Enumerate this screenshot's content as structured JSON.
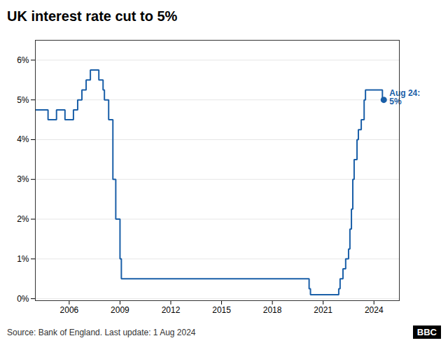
{
  "chart_data": {
    "type": "line",
    "title": "UK interest rate cut to 5%",
    "source": "Source: Bank of England. Last update: 1 Aug 2024",
    "logo": "BBC",
    "color": "#1a5fa8",
    "grid": true,
    "xlim": [
      2004.0,
      2025.5
    ],
    "xticks": [
      2006,
      2009,
      2012,
      2015,
      2018,
      2021,
      2024
    ],
    "ylim": [
      -0.05,
      6.5
    ],
    "yticks": [
      {
        "value": 0,
        "label": "0%"
      },
      {
        "value": 1,
        "label": "1%"
      },
      {
        "value": 2,
        "label": "2%"
      },
      {
        "value": 3,
        "label": "3%"
      },
      {
        "value": 4,
        "label": "4%"
      },
      {
        "value": 5,
        "label": "5%"
      },
      {
        "value": 6,
        "label": "6%"
      }
    ],
    "x": [
      2004.0,
      2004.75,
      2004.75,
      2005.25,
      2005.25,
      2005.75,
      2005.75,
      2006.0,
      2006.0,
      2006.25,
      2006.25,
      2006.5,
      2006.5,
      2006.75,
      2006.75,
      2007.0,
      2007.0,
      2007.25,
      2007.25,
      2007.5,
      2007.5,
      2007.75,
      2007.75,
      2008.0,
      2008.0,
      2008.08,
      2008.08,
      2008.33,
      2008.33,
      2008.58,
      2008.58,
      2008.75,
      2008.75,
      2009.0,
      2009.0,
      2009.08,
      2009.08,
      2020.17,
      2020.17,
      2020.25,
      2020.25,
      2021.92,
      2021.92,
      2022.0,
      2022.0,
      2022.17,
      2022.17,
      2022.33,
      2022.33,
      2022.5,
      2022.5,
      2022.58,
      2022.58,
      2022.67,
      2022.67,
      2022.75,
      2022.75,
      2022.83,
      2022.83,
      2023.0,
      2023.0,
      2023.08,
      2023.08,
      2023.25,
      2023.25,
      2023.42,
      2023.42,
      2023.5,
      2023.5,
      2024.5,
      2024.5,
      2024.58
    ],
    "values": [
      4.75,
      4.75,
      4.5,
      4.5,
      4.75,
      4.75,
      4.5,
      4.5,
      4.5,
      4.5,
      4.75,
      4.75,
      5.0,
      5.0,
      5.25,
      5.25,
      5.5,
      5.5,
      5.75,
      5.75,
      5.75,
      5.75,
      5.5,
      5.5,
      5.25,
      5.25,
      5.0,
      5.0,
      4.5,
      4.5,
      3.0,
      3.0,
      2.0,
      2.0,
      1.0,
      1.0,
      0.5,
      0.5,
      0.25,
      0.25,
      0.1,
      0.1,
      0.25,
      0.25,
      0.5,
      0.5,
      0.75,
      0.75,
      1.0,
      1.0,
      1.25,
      1.25,
      1.75,
      1.75,
      2.25,
      2.25,
      3.0,
      3.0,
      3.5,
      3.5,
      4.0,
      4.0,
      4.25,
      4.25,
      4.5,
      4.5,
      5.0,
      5.0,
      5.25,
      5.25,
      5.0,
      5.0
    ],
    "annotations": [
      {
        "text": "Aug 24:\n5%",
        "x": 2024.58,
        "y": 5.0,
        "color": "#1a5fa8",
        "marker": "circle"
      }
    ]
  }
}
